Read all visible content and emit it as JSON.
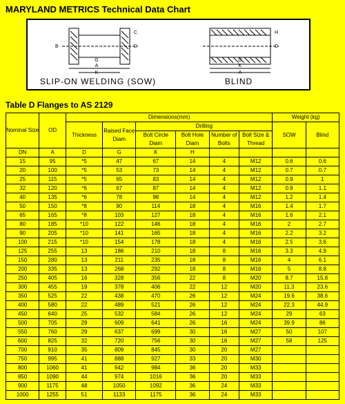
{
  "title": "MARYLAND METRICS Technical Data Chart",
  "diagram": {
    "left_caption": "SLIP-ON  WELDING (SOW)",
    "right_caption": "BLIND"
  },
  "subtitle": "Table D Flanges to AS 2129",
  "headers": {
    "dimensions": "Dimensions(mm)",
    "weight": "Weight (kg)",
    "raised_face_diam": "Raised Face Diam",
    "drilling": "Drilling",
    "nominal_size": "Nominal Size",
    "od": "OD",
    "thickness": "Thickness",
    "bolt_circle_diam": "Bolt Circle Diam",
    "bolt_hole_diam": "Bolt Hole Diam",
    "number_of_bolts": "Number of Bolts",
    "bolt_size_thread": "Bolt Size & Thread",
    "sow": "SOW",
    "blind": "Blind",
    "dn": "DN",
    "a": "A",
    "d": "D",
    "g": "G",
    "k": "K",
    "h": "H"
  },
  "rows": [
    [
      "15",
      "95",
      "*5",
      "47",
      "67",
      "14",
      "4",
      "M12",
      "0.6",
      "0.6"
    ],
    [
      "20",
      "100",
      "*5",
      "53",
      "73",
      "14",
      "4",
      "M12",
      "0.7",
      "0.7"
    ],
    [
      "25",
      "115",
      "*5",
      "65",
      "83",
      "14",
      "4",
      "M12",
      "0.9",
      "1"
    ],
    [
      "32",
      "120",
      "*6",
      "67",
      "87",
      "14",
      "4",
      "M12",
      "0.9",
      "1.1"
    ],
    [
      "40",
      "135",
      "*6",
      "78",
      "98",
      "14",
      "4",
      "M12",
      "1.2",
      "1.4"
    ],
    [
      "50",
      "150",
      "*8",
      "90",
      "114",
      "18",
      "4",
      "M16",
      "1.4",
      "1.7"
    ],
    [
      "65",
      "165",
      "*8",
      "103",
      "127",
      "18",
      "4",
      "M16",
      "1.6",
      "2.1"
    ],
    [
      "80",
      "185",
      "*10",
      "122",
      "146",
      "18",
      "4",
      "M16",
      "2",
      "2.7"
    ],
    [
      "90",
      "205",
      "*10",
      "141",
      "165",
      "18",
      "4",
      "M16",
      "2.2",
      "3.2"
    ],
    [
      "100",
      "215",
      "*10",
      "154",
      "178",
      "18",
      "4",
      "M16",
      "2.5",
      "3.6"
    ],
    [
      "125",
      "255",
      "13",
      "186",
      "210",
      "18",
      "8",
      "M16",
      "3.3",
      "4.9"
    ],
    [
      "150",
      "280",
      "13",
      "211",
      "235",
      "18",
      "8",
      "M16",
      "4",
      "6.1"
    ],
    [
      "200",
      "335",
      "13",
      "268",
      "292",
      "18",
      "8",
      "M16",
      "5",
      "8.8"
    ],
    [
      "250",
      "405",
      "16",
      "328",
      "356",
      "22",
      "8",
      "M20",
      "8.7",
      "15.8"
    ],
    [
      "300",
      "455",
      "19",
      "378",
      "406",
      "22",
      "12",
      "M20",
      "11.3",
      "23.6"
    ],
    [
      "350",
      "525",
      "22",
      "438",
      "470",
      "26",
      "12",
      "M24",
      "19.6",
      "38.6"
    ],
    [
      "400",
      "580",
      "22",
      "489",
      "521",
      "26",
      "12",
      "M24",
      "22.3",
      "44.9"
    ],
    [
      "450",
      "640",
      "25",
      "532",
      "584",
      "26",
      "12",
      "M24",
      "29",
      "63"
    ],
    [
      "500",
      "705",
      "29",
      "609",
      "641",
      "26",
      "16",
      "M24",
      "39.9",
      "86"
    ],
    [
      "550",
      "760",
      "29",
      "637",
      "699",
      "30",
      "16",
      "M27",
      "50",
      "107"
    ],
    [
      "600",
      "825",
      "32",
      "720",
      "756",
      "30",
      "16",
      "M27",
      "58",
      "125"
    ],
    [
      "700",
      "910",
      "35",
      "809",
      "845",
      "30",
      "20",
      "M27",
      "",
      ""
    ],
    [
      "750",
      "995",
      "41",
      "888",
      "927",
      "33",
      "20",
      "M30",
      "",
      ""
    ],
    [
      "800",
      "1060",
      "41",
      "942",
      "984",
      "36",
      "20",
      "M33",
      "",
      ""
    ],
    [
      "850",
      "1090",
      "44",
      "974",
      "1016",
      "36",
      "20",
      "M33",
      "",
      ""
    ],
    [
      "900",
      "1175",
      "48",
      "1050",
      "1092",
      "36",
      "24",
      "M33",
      "",
      ""
    ],
    [
      "1000",
      "1255",
      "51",
      "1133",
      "1175",
      "36",
      "24",
      "M33",
      "",
      ""
    ]
  ],
  "colors": {
    "page_bg": "#ffff00",
    "diagram_bg": "#ffffff",
    "border": "#000000"
  }
}
